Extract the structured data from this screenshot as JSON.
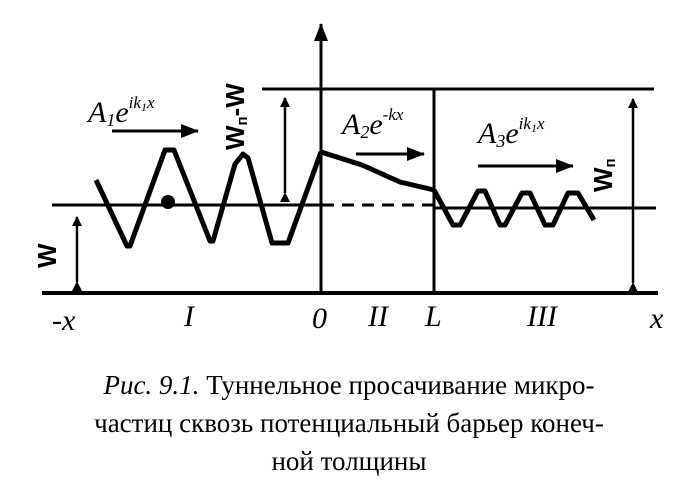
{
  "labels": {
    "neg_x": "-x",
    "x": "x",
    "region_I": "I",
    "origin": "0",
    "region_II": "II",
    "L": "L",
    "region_III": "III",
    "W": "W",
    "W_pi_minus_W": {
      "main": "W",
      "sub": "п",
      "rest": "-W"
    },
    "W_pi": {
      "main": "W",
      "sub": "п"
    }
  },
  "amplitudes": {
    "a1": {
      "coef": "A",
      "idx": "1",
      "base": "e",
      "exp": "ik",
      "exp_idx": "1",
      "exp_var": "x"
    },
    "a2": {
      "coef": "A",
      "idx": "2",
      "base": "e",
      "exp": "-kx"
    },
    "a3": {
      "coef": "A",
      "idx": "3",
      "base": "e",
      "exp": "ik",
      "exp_idx": "1",
      "exp_var": "x"
    }
  },
  "caption": {
    "number": "Рис. 9.1.",
    "line1": "Туннельное просачивание микро-",
    "line2": "частиц сквозь потенциальный барьер конеч-",
    "line3": "ной толщины"
  }
}
